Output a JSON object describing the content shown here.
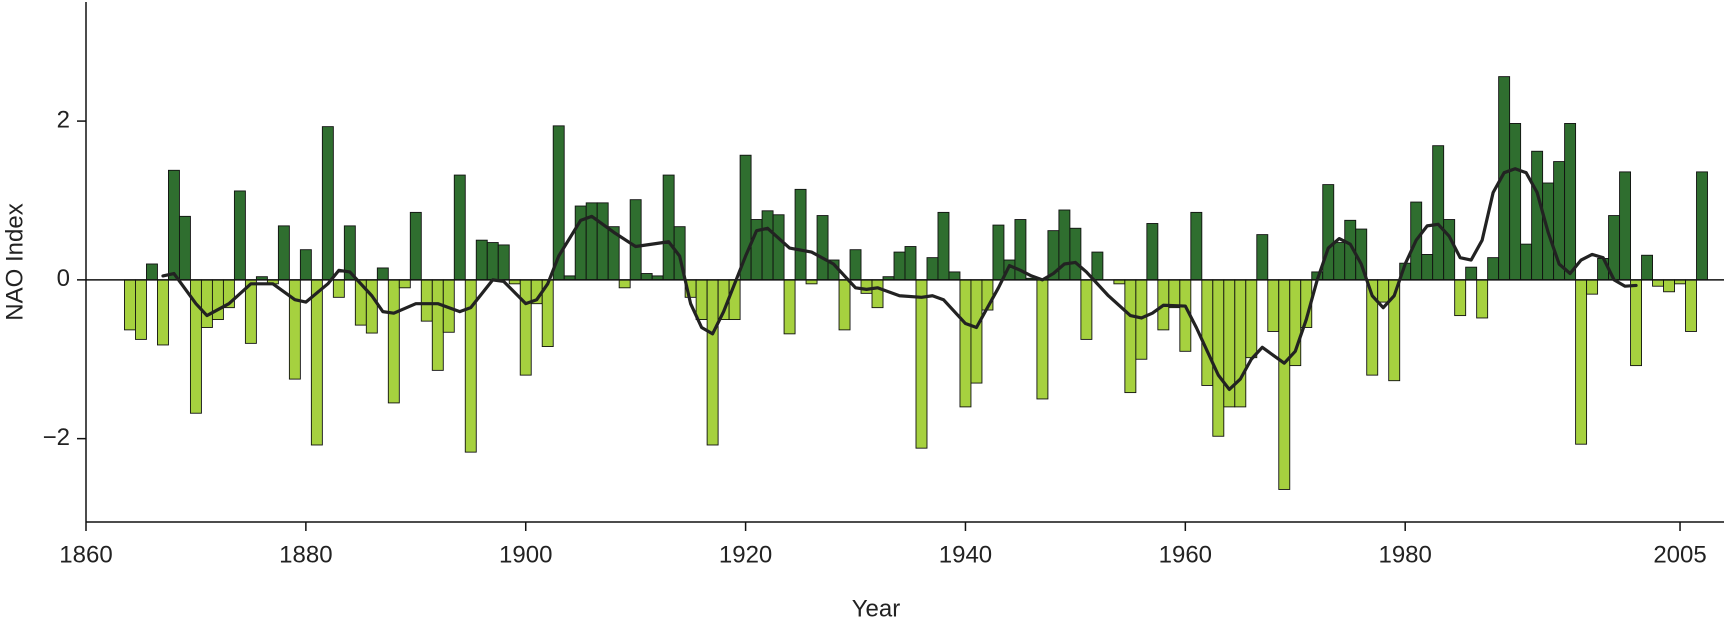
{
  "chart_data": {
    "type": "bar",
    "xlabel": "Year",
    "ylabel": "NAO Index",
    "positive_color": "#2f6e2f",
    "negative_color": "#a6d13f",
    "xlim": [
      1860,
      2009
    ],
    "ylim": [
      -3.05,
      3.5
    ],
    "xticks": [
      1860,
      1880,
      1900,
      1920,
      1940,
      1960,
      1980,
      2005
    ],
    "yticks": [
      {
        "value": -2,
        "label": "−2"
      },
      0,
      2
    ],
    "grid": false,
    "x": [
      1864,
      1865,
      1866,
      1867,
      1868,
      1869,
      1870,
      1871,
      1872,
      1873,
      1874,
      1875,
      1876,
      1877,
      1878,
      1879,
      1880,
      1881,
      1882,
      1883,
      1884,
      1885,
      1886,
      1887,
      1888,
      1889,
      1890,
      1891,
      1892,
      1893,
      1894,
      1895,
      1896,
      1897,
      1898,
      1899,
      1900,
      1901,
      1902,
      1903,
      1904,
      1905,
      1906,
      1907,
      1908,
      1909,
      1910,
      1911,
      1912,
      1913,
      1914,
      1915,
      1916,
      1917,
      1918,
      1919,
      1920,
      1921,
      1922,
      1923,
      1924,
      1925,
      1926,
      1927,
      1928,
      1929,
      1930,
      1931,
      1932,
      1933,
      1934,
      1935,
      1936,
      1937,
      1938,
      1939,
      1940,
      1941,
      1942,
      1943,
      1944,
      1945,
      1946,
      1947,
      1948,
      1949,
      1950,
      1951,
      1952,
      1953,
      1954,
      1955,
      1956,
      1957,
      1958,
      1959,
      1960,
      1961,
      1962,
      1963,
      1964,
      1965,
      1966,
      1967,
      1968,
      1969,
      1970,
      1971,
      1972,
      1973,
      1974,
      1975,
      1976,
      1977,
      1978,
      1979,
      1980,
      1981,
      1982,
      1983,
      1984,
      1985,
      1986,
      1987,
      1988,
      1989,
      1990,
      1991,
      1992,
      1993,
      1994,
      1995,
      1996,
      1997,
      1998,
      1999,
      2000,
      2001,
      2002,
      2003,
      2004,
      2005,
      2006,
      2007
    ],
    "values": [
      -0.63,
      -0.75,
      0.2,
      -0.82,
      1.38,
      0.8,
      -1.68,
      -0.6,
      -0.5,
      -0.35,
      1.12,
      -0.8,
      0.04,
      -0.05,
      0.68,
      -1.25,
      0.38,
      -2.08,
      1.93,
      -0.22,
      0.68,
      -0.57,
      -0.67,
      0.15,
      -1.55,
      -0.1,
      0.85,
      -0.52,
      -1.14,
      -0.66,
      1.32,
      -2.17,
      0.5,
      0.47,
      0.44,
      -0.05,
      -1.2,
      -0.3,
      -0.84,
      1.94,
      0.05,
      0.93,
      0.97,
      0.97,
      0.67,
      -0.1,
      1.01,
      0.08,
      0.05,
      1.32,
      0.67,
      -0.22,
      -0.5,
      -2.08,
      -0.5,
      -0.5,
      1.57,
      0.76,
      0.87,
      0.82,
      -0.68,
      1.14,
      -0.05,
      0.81,
      0.25,
      -0.63,
      0.38,
      -0.17,
      -0.35,
      0.04,
      0.35,
      0.42,
      -2.12,
      0.28,
      0.85,
      0.1,
      -1.6,
      -1.3,
      -0.38,
      0.69,
      0.25,
      0.76,
      0.02,
      -1.5,
      0.62,
      0.88,
      0.65,
      -0.75,
      0.35,
      0,
      -0.05,
      -1.42,
      -1.0,
      0.71,
      -0.63,
      -0.35,
      -0.9,
      0.85,
      -1.33,
      -1.97,
      -1.6,
      -1.6,
      -0.98,
      0.57,
      -0.65,
      -2.64,
      -1.08,
      -0.6,
      0.1,
      1.2,
      0.47,
      0.75,
      0.64,
      -1.2,
      -0.28,
      -1.27,
      0.21,
      0.98,
      0.32,
      1.69,
      0.76,
      -0.45,
      0.16,
      -0.48,
      0.28,
      2.56,
      1.97,
      0.45,
      1.62,
      1.22,
      1.49,
      1.97,
      -2.07,
      -0.18,
      0.27,
      0.81,
      1.36,
      -1.08,
      0.31,
      -0.08,
      -0.15,
      -0.05,
      -0.65,
      1.36
    ],
    "overlay": {
      "type": "line",
      "color": "#222222",
      "x": [
        1867,
        1868,
        1870,
        1871,
        1873,
        1875,
        1877,
        1879,
        1880,
        1882,
        1883,
        1884,
        1886,
        1887,
        1888,
        1890,
        1892,
        1894,
        1895,
        1897,
        1898,
        1900,
        1901,
        1902,
        1903,
        1905,
        1906,
        1908,
        1910,
        1913,
        1914,
        1915,
        1916,
        1917,
        1918,
        1920,
        1921,
        1922,
        1924,
        1926,
        1928,
        1930,
        1931,
        1932,
        1934,
        1936,
        1937,
        1938,
        1940,
        1941,
        1942,
        1943,
        1944,
        1945,
        1946,
        1947,
        1948,
        1949,
        1950,
        1951,
        1953,
        1955,
        1956,
        1957,
        1958,
        1960,
        1961,
        1962,
        1963,
        1964,
        1965,
        1966,
        1967,
        1968,
        1969,
        1970,
        1971,
        1972,
        1973,
        1974,
        1975,
        1976,
        1977,
        1978,
        1979,
        1980,
        1981,
        1982,
        1983,
        1984,
        1985,
        1986,
        1987,
        1988,
        1989,
        1990,
        1991,
        1992,
        1993,
        1994,
        1995,
        1996,
        1997,
        1998,
        1999,
        2000,
        2001
      ],
      "values": [
        0.05,
        0.08,
        -0.3,
        -0.45,
        -0.3,
        -0.05,
        -0.05,
        -0.25,
        -0.28,
        -0.05,
        0.12,
        0.1,
        -0.2,
        -0.4,
        -0.42,
        -0.3,
        -0.3,
        -0.4,
        -0.35,
        0.0,
        -0.02,
        -0.3,
        -0.25,
        -0.05,
        0.3,
        0.75,
        0.8,
        0.6,
        0.42,
        0.48,
        0.3,
        -0.3,
        -0.6,
        -0.68,
        -0.4,
        0.3,
        0.62,
        0.65,
        0.4,
        0.35,
        0.2,
        -0.1,
        -0.12,
        -0.1,
        -0.2,
        -0.22,
        -0.2,
        -0.25,
        -0.55,
        -0.6,
        -0.35,
        -0.1,
        0.18,
        0.12,
        0.05,
        0.0,
        0.08,
        0.2,
        0.22,
        0.1,
        -0.2,
        -0.45,
        -0.48,
        -0.42,
        -0.32,
        -0.33,
        -0.6,
        -0.9,
        -1.2,
        -1.38,
        -1.25,
        -1.0,
        -0.85,
        -0.95,
        -1.05,
        -0.9,
        -0.5,
        0.0,
        0.4,
        0.52,
        0.45,
        0.2,
        -0.2,
        -0.35,
        -0.2,
        0.2,
        0.5,
        0.68,
        0.7,
        0.55,
        0.28,
        0.25,
        0.5,
        1.1,
        1.35,
        1.4,
        1.35,
        1.1,
        0.6,
        0.2,
        0.08,
        0.25,
        0.32,
        0.28,
        0.0,
        -0.08,
        -0.07
      ]
    }
  }
}
